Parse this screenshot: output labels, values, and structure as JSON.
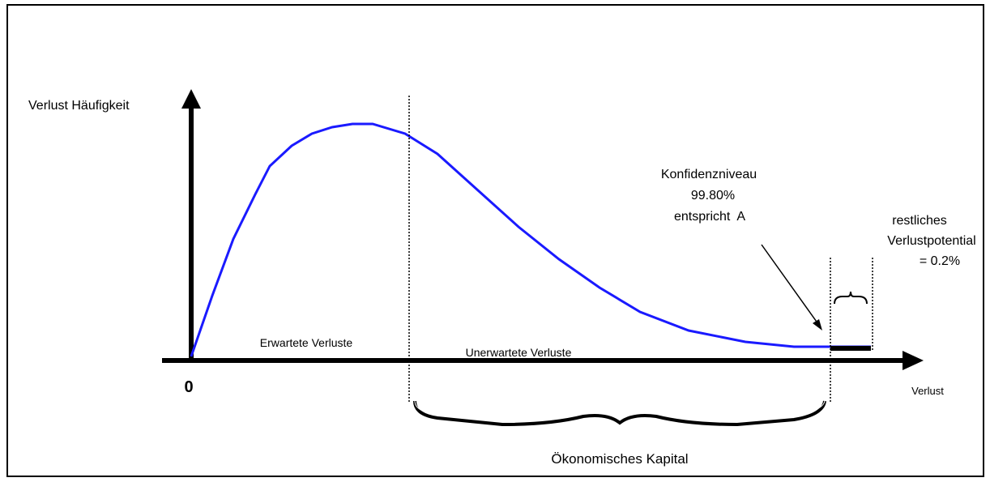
{
  "axes": {
    "y_label": "Verlust Häufigkeit",
    "x_label": "Verlust",
    "origin": "0"
  },
  "regions": {
    "expected": "Erwartete Verluste",
    "unexpected": "Unerwartete Verluste",
    "economic_capital": "Ökonomisches Kapital"
  },
  "confidence": {
    "lines": [
      "Konfidenzniveau",
      "99.80%",
      "entspricht  A"
    ]
  },
  "remaining": {
    "lines": [
      "restliches",
      "Verlustpotential",
      "= 0.2%"
    ]
  }
}
